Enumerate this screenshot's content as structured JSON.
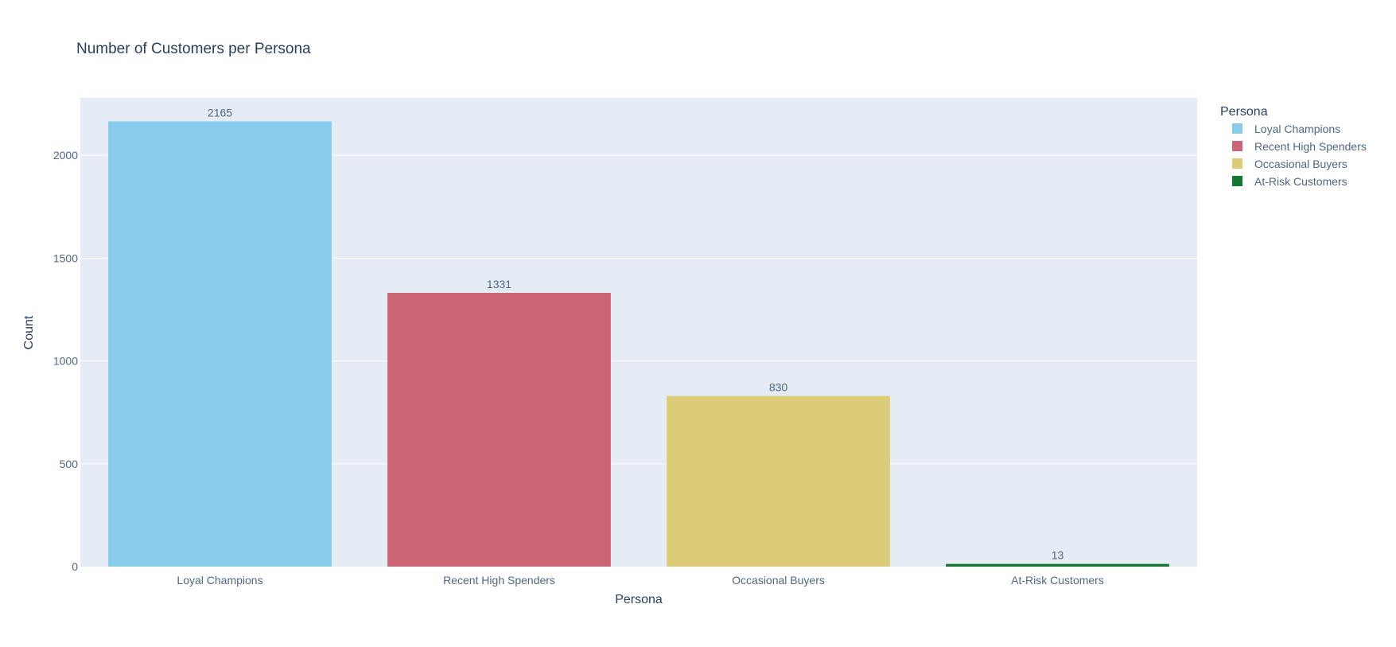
{
  "chart_data": {
    "type": "bar",
    "title": "Number of Customers per Persona",
    "xlabel": "Persona",
    "ylabel": "Count",
    "categories": [
      "Loyal Champions",
      "Recent High Spenders",
      "Occasional Buyers",
      "At-Risk Customers"
    ],
    "values": [
      2165,
      1331,
      830,
      13
    ],
    "colors": [
      "#88cced",
      "#cc6677",
      "#ddcc77",
      "#117733"
    ],
    "ylim": [
      0,
      2279
    ],
    "yticks": [
      0,
      500,
      1000,
      1500,
      2000
    ],
    "grid": true,
    "plot_bgcolor": "#e5ecf6",
    "legend": {
      "title": "Persona",
      "placement": "right",
      "entries": [
        "Loyal Champions",
        "Recent High Spenders",
        "Occasional Buyers",
        "At-Risk Customers"
      ]
    }
  }
}
